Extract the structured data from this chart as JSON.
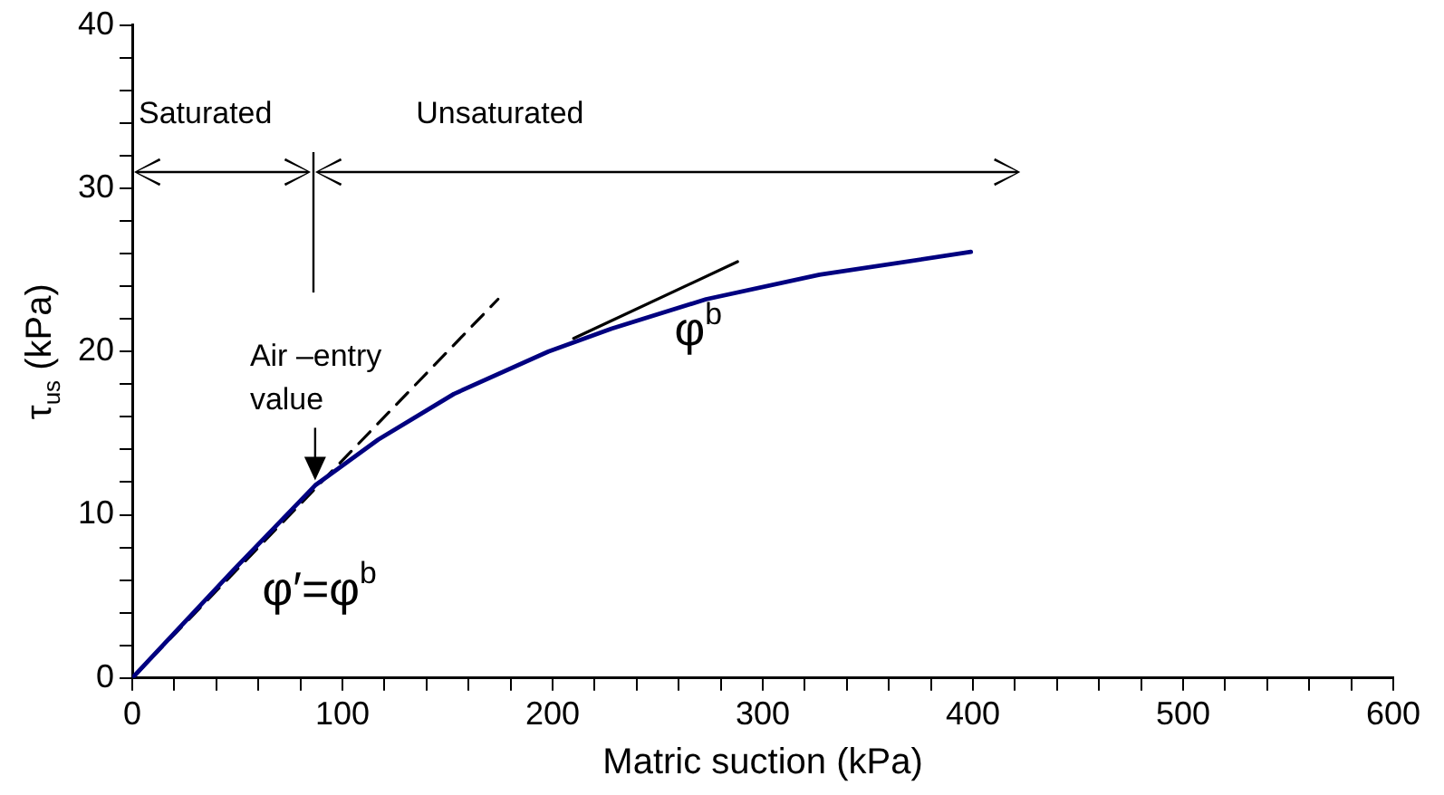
{
  "chart_data": {
    "type": "line",
    "xlabel": "Matric suction (kPa)",
    "ylabel": "τ$_{us}$ (kPa)",
    "xlim": [
      0,
      600
    ],
    "ylim": [
      0,
      40
    ],
    "xticks": [
      0,
      {
        "value": 20,
        "label": null
      },
      {
        "value": 40,
        "label": null
      },
      {
        "value": 60,
        "label": null
      },
      {
        "value": 80,
        "label": null
      },
      100,
      {
        "value": 120,
        "label": null
      },
      {
        "value": 140,
        "label": null
      },
      {
        "value": 160,
        "label": null
      },
      {
        "value": 180,
        "label": null
      },
      200,
      {
        "value": 220,
        "label": null
      },
      {
        "value": 240,
        "label": null
      },
      {
        "value": 260,
        "label": null
      },
      {
        "value": 280,
        "label": null
      },
      300,
      {
        "value": 320,
        "label": null
      },
      {
        "value": 340,
        "label": null
      },
      {
        "value": 360,
        "label": null
      },
      {
        "value": 380,
        "label": null
      },
      400,
      {
        "value": 420,
        "label": null
      },
      {
        "value": 440,
        "label": null
      },
      {
        "value": 460,
        "label": null
      },
      {
        "value": 480,
        "label": null
      },
      500,
      {
        "value": 520,
        "label": null
      },
      {
        "value": 540,
        "label": null
      },
      {
        "value": 560,
        "label": null
      },
      {
        "value": 580,
        "label": null
      },
      600
    ],
    "yticks": [
      0,
      {
        "value": 2,
        "label": null
      },
      {
        "value": 4,
        "label": null
      },
      {
        "value": 6,
        "label": null
      },
      {
        "value": 8,
        "label": null
      },
      10,
      {
        "value": 12,
        "label": null
      },
      {
        "value": 14,
        "label": null
      },
      {
        "value": 16,
        "label": null
      },
      {
        "value": 18,
        "label": null
      },
      20,
      {
        "value": 22,
        "label": null
      },
      {
        "value": 24,
        "label": null
      },
      {
        "value": 26,
        "label": null
      },
      {
        "value": 28,
        "label": null
      },
      30,
      {
        "value": 32,
        "label": null
      },
      {
        "value": 34,
        "label": null
      },
      {
        "value": 36,
        "label": null
      },
      {
        "value": 38,
        "label": null
      },
      40
    ],
    "grid": false,
    "legend": false,
    "marker": "none",
    "series": [
      {
        "color": "#000080",
        "x": [
          0,
          48,
          87,
          117,
          153,
          198,
          228,
          273,
          327,
          399
        ],
        "values": [
          0,
          6.6,
          11.8,
          14.6,
          17.4,
          20,
          21.4,
          23.2,
          24.7,
          26.1
        ]
      },
      {
        "color": "#000000",
        "line_style": "dashed",
        "x": [
          0,
          174
        ],
        "values": [
          0,
          23.2
        ]
      },
      {
        "color": "#000000",
        "x": [
          210,
          288
        ],
        "values": [
          20.8,
          25.5
        ]
      }
    ],
    "annotations": [
      "Saturated",
      "Unsaturated",
      {
        "text": "Air –entry value",
        "x": 87,
        "y": 12
      },
      "φ′=φ$^{b}$",
      "φ$^{b}$"
    ]
  }
}
